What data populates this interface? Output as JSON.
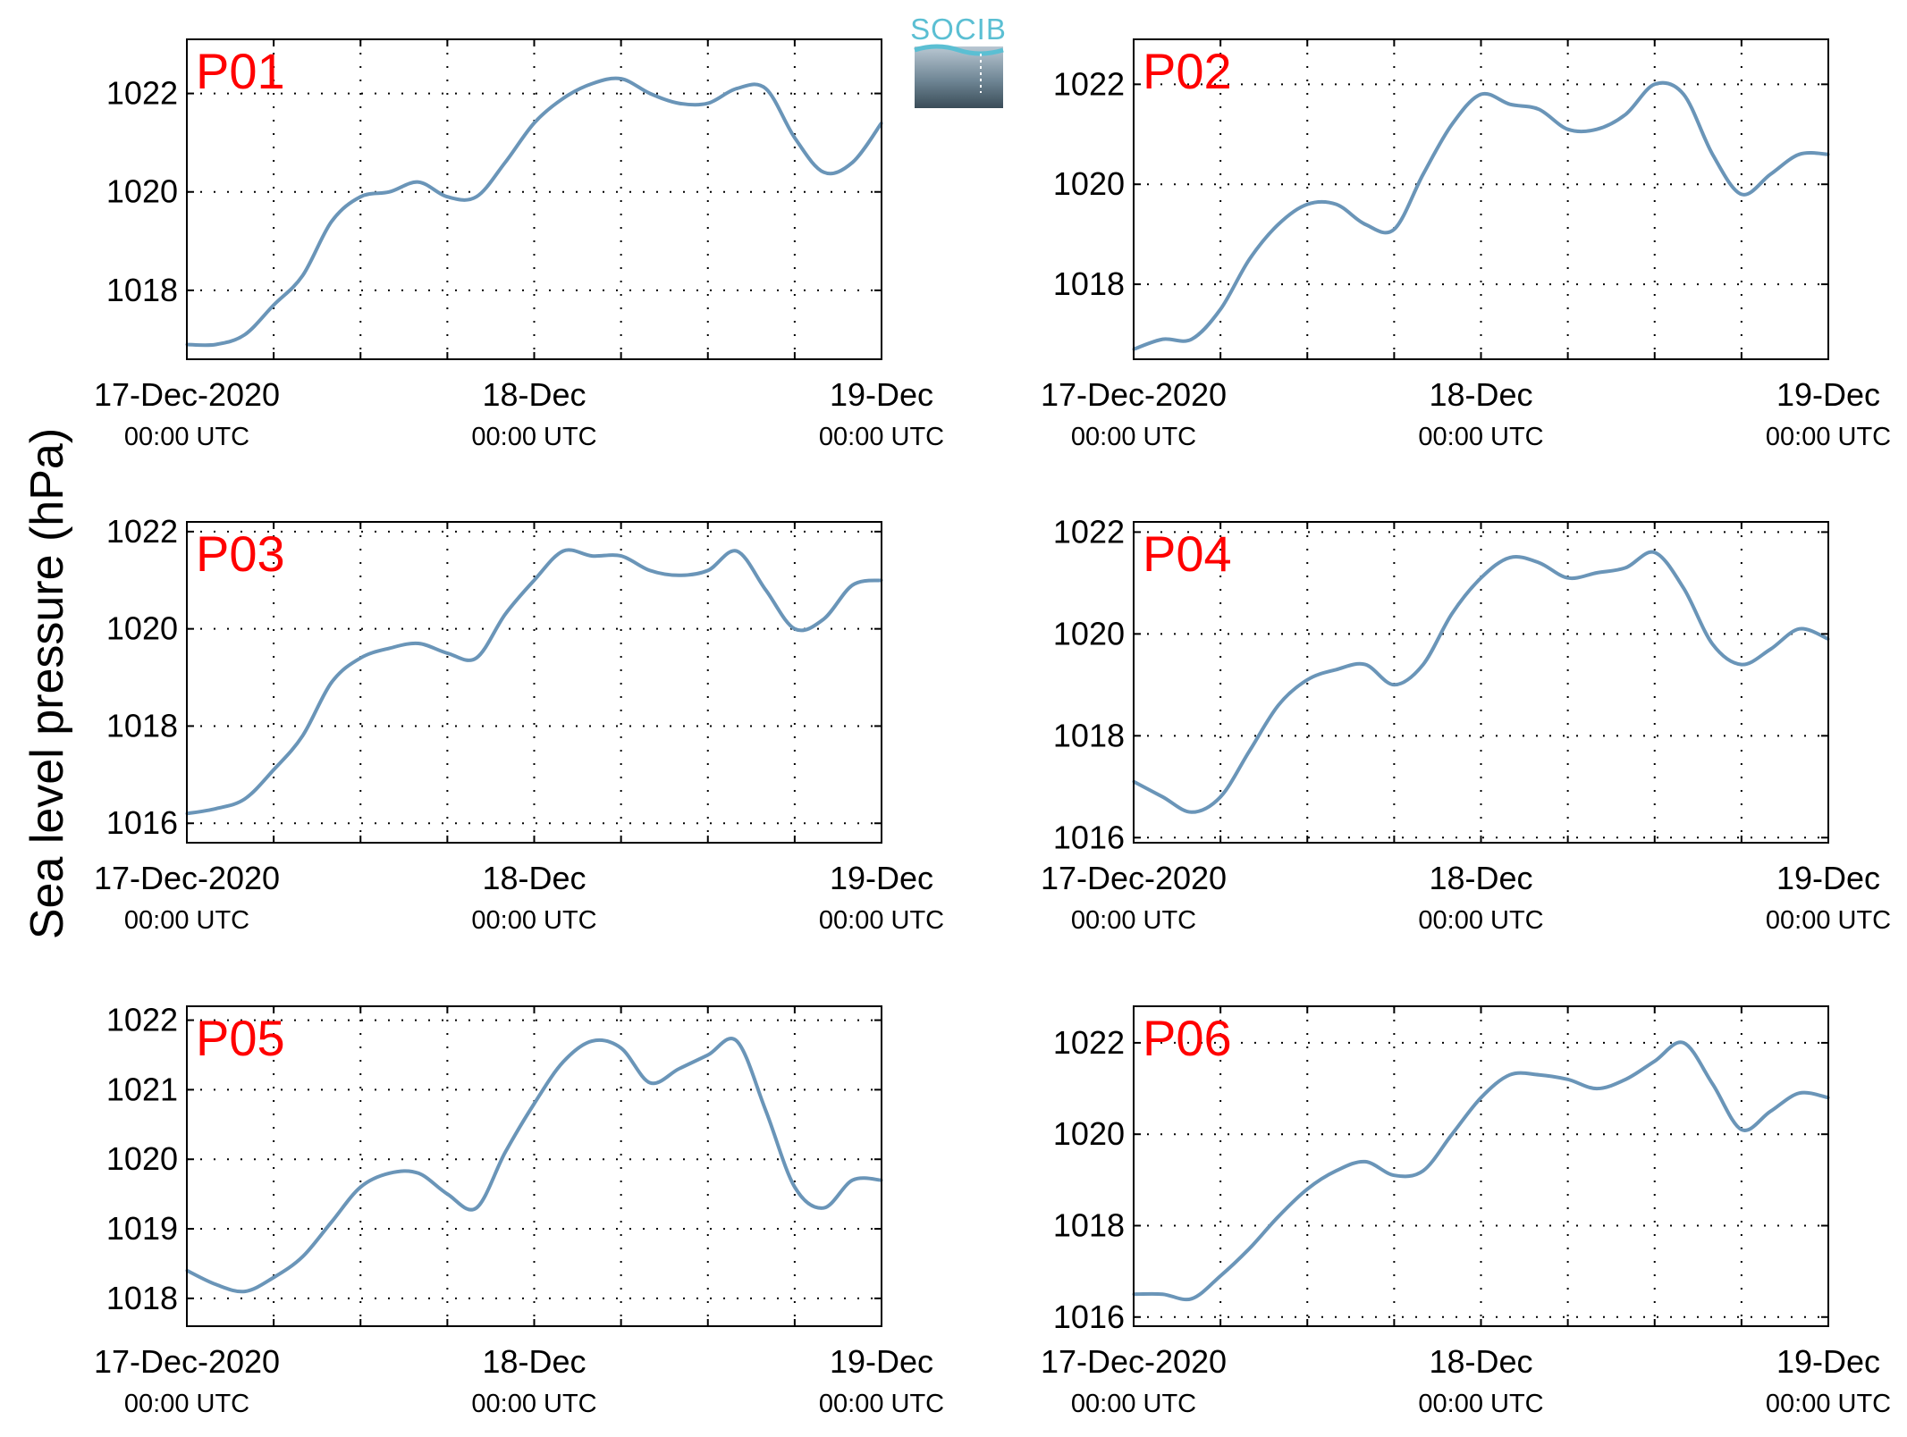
{
  "figure": {
    "ylabel": "Sea level pressure (hPa)",
    "logo_text": "SOCIB"
  },
  "colors": {
    "line": "#6a95b8",
    "title": "#ff0000",
    "grid": "#000000",
    "logo_accent": "#5bbfd3"
  },
  "chart_data": [
    {
      "type": "line",
      "title": "P01",
      "x_range": [
        "2020-12-17 00:00",
        "2020-12-19 00:00"
      ],
      "x_ticks": [
        {
          "date": "17-Dec-2020",
          "time": "00:00 UTC"
        },
        {
          "date": "18-Dec",
          "time": "00:00 UTC"
        },
        {
          "date": "19-Dec",
          "time": "00:00 UTC"
        }
      ],
      "ylim": [
        1016.6,
        1023.1
      ],
      "y_ticks": [
        1018,
        1020,
        1022
      ],
      "grid": true,
      "x_hours": [
        0,
        2,
        4,
        6,
        8,
        10,
        12,
        14,
        16,
        18,
        20,
        22,
        24,
        26,
        28,
        30,
        32,
        34,
        36,
        38,
        40,
        42,
        44,
        46,
        48
      ],
      "values": [
        1016.9,
        1016.9,
        1017.1,
        1017.7,
        1018.3,
        1019.4,
        1019.9,
        1020.0,
        1020.2,
        1019.9,
        1019.9,
        1020.6,
        1021.4,
        1021.9,
        1022.2,
        1022.3,
        1022.0,
        1021.8,
        1021.8,
        1022.1,
        1022.1,
        1021.1,
        1020.4,
        1020.6,
        1021.4
      ]
    },
    {
      "type": "line",
      "title": "P02",
      "x_range": [
        "2020-12-17 00:00",
        "2020-12-19 00:00"
      ],
      "x_ticks": [
        {
          "date": "17-Dec-2020",
          "time": "00:00 UTC"
        },
        {
          "date": "18-Dec",
          "time": "00:00 UTC"
        },
        {
          "date": "19-Dec",
          "time": "00:00 UTC"
        }
      ],
      "ylim": [
        1016.5,
        1022.9
      ],
      "y_ticks": [
        1018,
        1020,
        1022
      ],
      "grid": true,
      "x_hours": [
        0,
        2,
        4,
        6,
        8,
        10,
        12,
        14,
        16,
        18,
        20,
        22,
        24,
        26,
        28,
        30,
        32,
        34,
        36,
        38,
        40,
        42,
        44,
        46,
        48
      ],
      "values": [
        1016.7,
        1016.9,
        1016.9,
        1017.5,
        1018.5,
        1019.2,
        1019.6,
        1019.6,
        1019.2,
        1019.1,
        1020.2,
        1021.2,
        1021.8,
        1021.6,
        1021.5,
        1021.1,
        1021.1,
        1021.4,
        1022.0,
        1021.8,
        1020.6,
        1019.8,
        1020.2,
        1020.6,
        1020.6
      ]
    },
    {
      "type": "line",
      "title": "P03",
      "x_range": [
        "2020-12-17 00:00",
        "2020-12-19 00:00"
      ],
      "x_ticks": [
        {
          "date": "17-Dec-2020",
          "time": "00:00 UTC"
        },
        {
          "date": "18-Dec",
          "time": "00:00 UTC"
        },
        {
          "date": "19-Dec",
          "time": "00:00 UTC"
        }
      ],
      "ylim": [
        1015.6,
        1022.2
      ],
      "y_ticks": [
        1016,
        1018,
        1020,
        1022
      ],
      "grid": true,
      "x_hours": [
        0,
        2,
        4,
        6,
        8,
        10,
        12,
        14,
        16,
        18,
        20,
        22,
        24,
        26,
        28,
        30,
        32,
        34,
        36,
        38,
        40,
        42,
        44,
        46,
        48
      ],
      "values": [
        1016.2,
        1016.3,
        1016.5,
        1017.1,
        1017.8,
        1018.9,
        1019.4,
        1019.6,
        1019.7,
        1019.5,
        1019.4,
        1020.3,
        1021.0,
        1021.6,
        1021.5,
        1021.5,
        1021.2,
        1021.1,
        1021.2,
        1021.6,
        1020.8,
        1020.0,
        1020.2,
        1020.9,
        1021.0
      ]
    },
    {
      "type": "line",
      "title": "P04",
      "x_range": [
        "2020-12-17 00:00",
        "2020-12-19 00:00"
      ],
      "x_ticks": [
        {
          "date": "17-Dec-2020",
          "time": "00:00 UTC"
        },
        {
          "date": "18-Dec",
          "time": "00:00 UTC"
        },
        {
          "date": "19-Dec",
          "time": "00:00 UTC"
        }
      ],
      "ylim": [
        1015.9,
        1022.2
      ],
      "y_ticks": [
        1016,
        1018,
        1020,
        1022
      ],
      "grid": true,
      "x_hours": [
        0,
        2,
        4,
        6,
        8,
        10,
        12,
        14,
        16,
        18,
        20,
        22,
        24,
        26,
        28,
        30,
        32,
        34,
        36,
        38,
        40,
        42,
        44,
        46,
        48
      ],
      "values": [
        1017.1,
        1016.8,
        1016.5,
        1016.8,
        1017.7,
        1018.6,
        1019.1,
        1019.3,
        1019.4,
        1019.0,
        1019.4,
        1020.4,
        1021.1,
        1021.5,
        1021.4,
        1021.1,
        1021.2,
        1021.3,
        1021.6,
        1020.9,
        1019.8,
        1019.4,
        1019.7,
        1020.1,
        1019.9
      ]
    },
    {
      "type": "line",
      "title": "P05",
      "x_range": [
        "2020-12-17 00:00",
        "2020-12-19 00:00"
      ],
      "x_ticks": [
        {
          "date": "17-Dec-2020",
          "time": "00:00 UTC"
        },
        {
          "date": "18-Dec",
          "time": "00:00 UTC"
        },
        {
          "date": "19-Dec",
          "time": "00:00 UTC"
        }
      ],
      "ylim": [
        1017.6,
        1022.2
      ],
      "y_ticks": [
        1018,
        1019,
        1020,
        1021,
        1022
      ],
      "grid": true,
      "x_hours": [
        0,
        2,
        4,
        6,
        8,
        10,
        12,
        14,
        16,
        18,
        20,
        22,
        24,
        26,
        28,
        30,
        32,
        34,
        36,
        38,
        40,
        42,
        44,
        46,
        48
      ],
      "values": [
        1018.4,
        1018.2,
        1018.1,
        1018.3,
        1018.6,
        1019.1,
        1019.6,
        1019.8,
        1019.8,
        1019.5,
        1019.3,
        1020.1,
        1020.8,
        1021.4,
        1021.7,
        1021.6,
        1021.1,
        1021.3,
        1021.5,
        1021.7,
        1020.7,
        1019.6,
        1019.3,
        1019.7,
        1019.7
      ]
    },
    {
      "type": "line",
      "title": "P06",
      "x_range": [
        "2020-12-17 00:00",
        "2020-12-19 00:00"
      ],
      "x_ticks": [
        {
          "date": "17-Dec-2020",
          "time": "00:00 UTC"
        },
        {
          "date": "18-Dec",
          "time": "00:00 UTC"
        },
        {
          "date": "19-Dec",
          "time": "00:00 UTC"
        }
      ],
      "ylim": [
        1015.8,
        1022.8
      ],
      "y_ticks": [
        1016,
        1018,
        1020,
        1022
      ],
      "grid": true,
      "x_hours": [
        0,
        2,
        4,
        6,
        8,
        10,
        12,
        14,
        16,
        18,
        20,
        22,
        24,
        26,
        28,
        30,
        32,
        34,
        36,
        38,
        40,
        42,
        44,
        46,
        48
      ],
      "values": [
        1016.5,
        1016.5,
        1016.4,
        1016.9,
        1017.5,
        1018.2,
        1018.8,
        1019.2,
        1019.4,
        1019.1,
        1019.2,
        1020.0,
        1020.8,
        1021.3,
        1021.3,
        1021.2,
        1021.0,
        1021.2,
        1021.6,
        1022.0,
        1021.1,
        1020.1,
        1020.5,
        1020.9,
        1020.8
      ]
    }
  ]
}
